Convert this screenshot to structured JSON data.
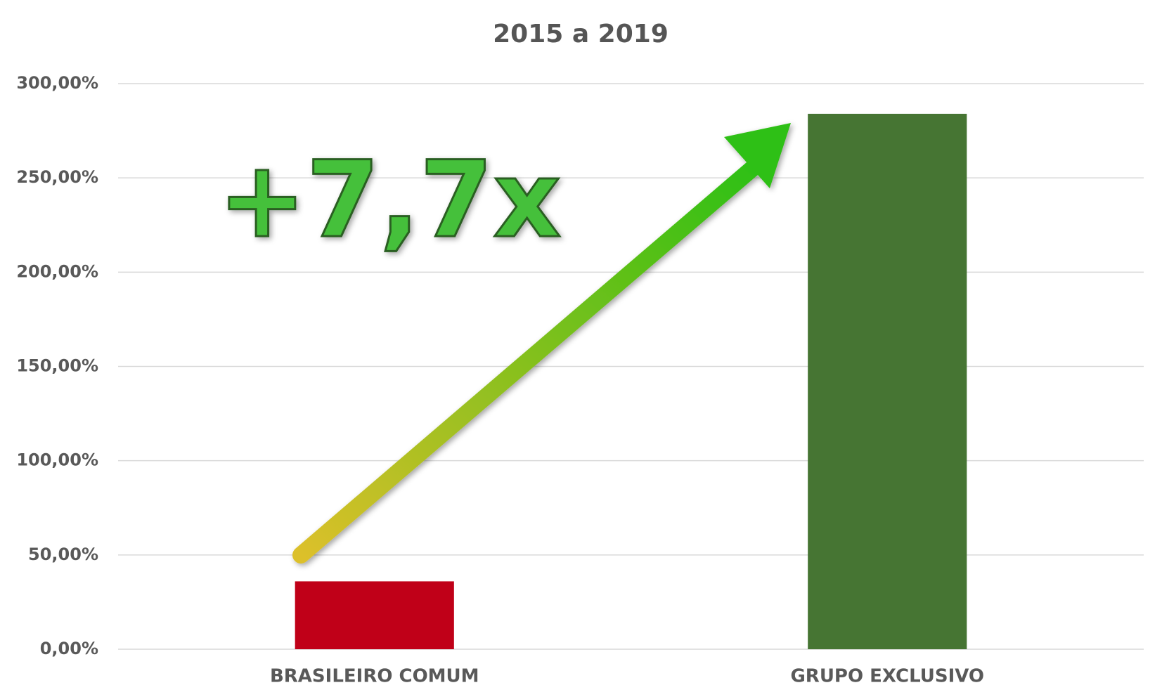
{
  "chart_data": {
    "type": "bar",
    "title": "2015 a 2019",
    "categories": [
      "BRASILEIRO COMUM",
      "GRUPO EXCLUSIVO"
    ],
    "values": [
      36,
      284
    ],
    "colors": [
      "#c00018",
      "#467533"
    ],
    "ylim": [
      0,
      300
    ],
    "yticks": [
      {
        "value": 0,
        "label": "0,00%"
      },
      {
        "value": 50,
        "label": "50,00%"
      },
      {
        "value": 100,
        "label": "100,00%"
      },
      {
        "value": 150,
        "label": "150,00%"
      },
      {
        "value": 200,
        "label": "200,00%"
      },
      {
        "value": 250,
        "label": "250,00%"
      },
      {
        "value": 300,
        "label": "300,00%"
      }
    ],
    "grid": true,
    "annotation": "+7,7x"
  }
}
